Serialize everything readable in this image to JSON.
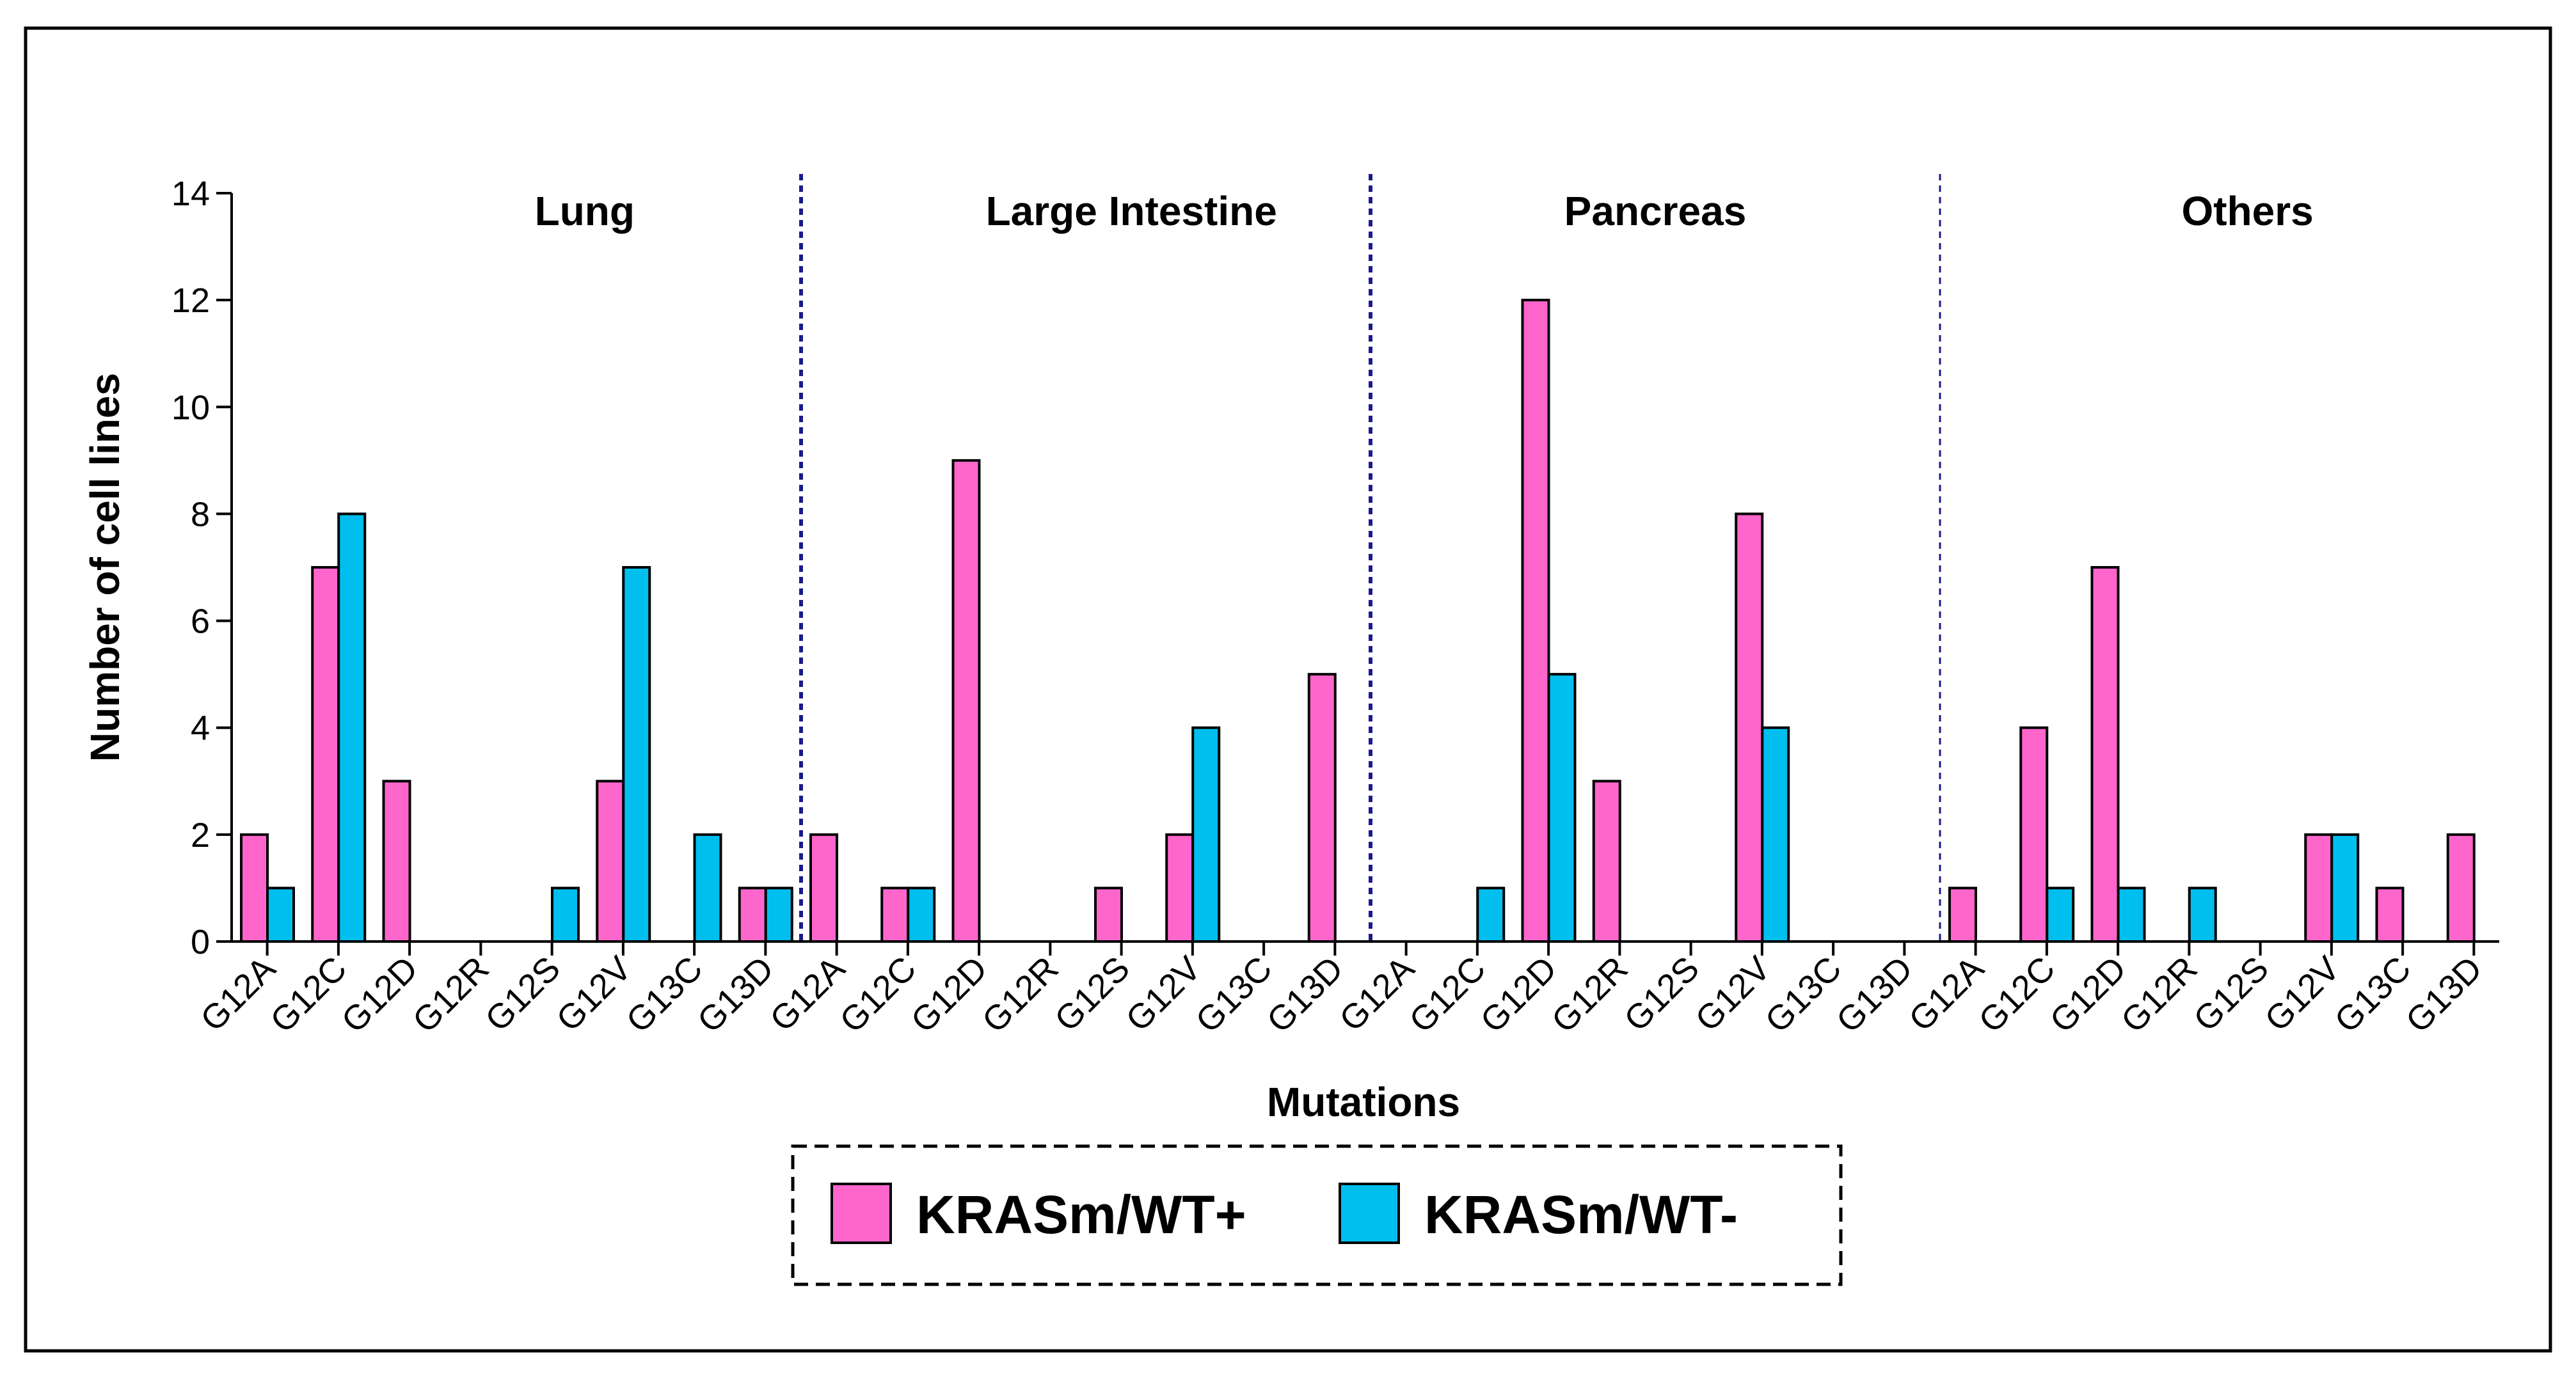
{
  "chart_data": {
    "type": "bar",
    "xlabel": "Mutations",
    "ylabel": "Number of cell lines",
    "ylim": [
      0,
      14
    ],
    "yticks": [
      0,
      2,
      4,
      6,
      8,
      10,
      12,
      14
    ],
    "mutations": [
      "G12A",
      "G12C",
      "G12D",
      "G12R",
      "G12S",
      "G12V",
      "G13C",
      "G13D"
    ],
    "groups": [
      {
        "name": "Lung",
        "series": [
          {
            "name": "KRASm/WT+",
            "values": [
              2,
              7,
              3,
              0,
              0,
              3,
              0,
              1
            ]
          },
          {
            "name": "KRASm/WT-",
            "values": [
              1,
              8,
              0,
              0,
              1,
              7,
              2,
              1
            ]
          }
        ]
      },
      {
        "name": "Large Intestine",
        "series": [
          {
            "name": "KRASm/WT+",
            "values": [
              2,
              1,
              9,
              0,
              1,
              2,
              0,
              5
            ]
          },
          {
            "name": "KRASm/WT-",
            "values": [
              0,
              1,
              0,
              0,
              0,
              4,
              0,
              0
            ]
          }
        ]
      },
      {
        "name": "Pancreas",
        "series": [
          {
            "name": "KRASm/WT+",
            "values": [
              0,
              0,
              12,
              3,
              0,
              8,
              0,
              0
            ]
          },
          {
            "name": "KRASm/WT-",
            "values": [
              0,
              1,
              5,
              0,
              0,
              4,
              0,
              0
            ]
          }
        ]
      },
      {
        "name": "Others",
        "series": [
          {
            "name": "KRASm/WT+",
            "values": [
              1,
              4,
              7,
              0,
              0,
              2,
              1,
              2
            ]
          },
          {
            "name": "KRASm/WT-",
            "values": [
              0,
              1,
              1,
              1,
              0,
              2,
              0,
              0
            ]
          }
        ]
      }
    ],
    "legend": [
      {
        "label": "KRASm/WT+",
        "color": "#FF66CC"
      },
      {
        "label": "KRASm/WT-",
        "color": "#00BFEF"
      }
    ],
    "colors": {
      "pos": "#FF66CC",
      "neg": "#00BFEF",
      "divider": "#1a1a8c"
    }
  }
}
